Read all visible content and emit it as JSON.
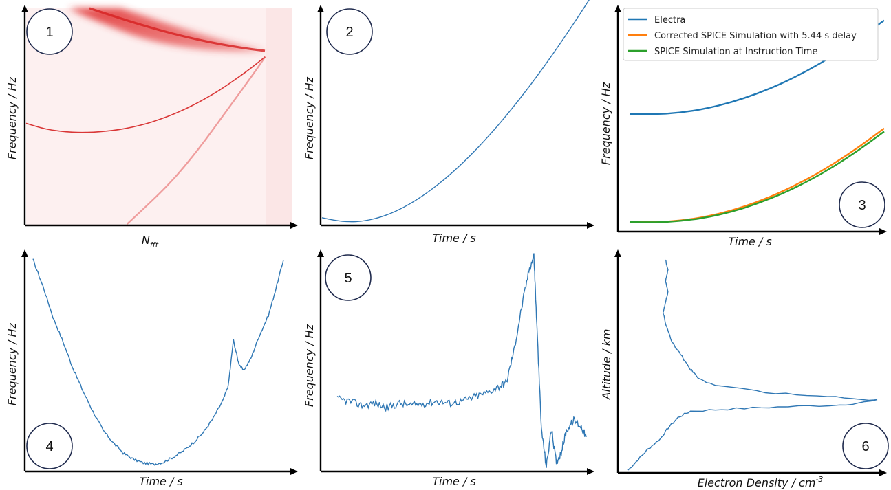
{
  "figure": {
    "background": "#ffffff",
    "line_color": "#2f77b4",
    "spectrogram_color": "#e03333"
  },
  "chart_data": [
    {
      "panel": "1",
      "type": "heatmap",
      "xlabel_main": "N",
      "xlabel_sub": "fft",
      "ylabel": "Frequency / Hz",
      "grid": false,
      "tick_labels": "none",
      "note": "spectrogram with three red frequency traces",
      "traces": [
        {
          "role": "main",
          "x": [
            0.0,
            0.05,
            0.1,
            0.15,
            0.2,
            0.25,
            0.3,
            0.35,
            0.4,
            0.45,
            0.5,
            0.55,
            0.6,
            0.65,
            0.7,
            0.75,
            0.8,
            0.85,
            0.9
          ],
          "y": [
            0.47,
            0.45,
            0.437,
            0.43,
            0.427,
            0.428,
            0.433,
            0.44,
            0.452,
            0.467,
            0.487,
            0.51,
            0.537,
            0.568,
            0.603,
            0.642,
            0.685,
            0.73,
            0.78
          ]
        },
        {
          "role": "upper",
          "x": [
            0.3,
            0.4,
            0.5,
            0.6,
            0.7,
            0.8,
            0.9
          ],
          "y": [
            1.0,
            0.94,
            0.88,
            0.84,
            0.81,
            0.79,
            0.78
          ]
        },
        {
          "role": "lower",
          "x": [
            0.38,
            0.45,
            0.55,
            0.65,
            0.75,
            0.85,
            0.9
          ],
          "y": [
            0.0,
            0.08,
            0.2,
            0.35,
            0.52,
            0.69,
            0.78
          ]
        }
      ]
    },
    {
      "panel": "2",
      "type": "line",
      "xlabel": "Time / s",
      "ylabel": "Frequency / Hz",
      "grid": false,
      "tick_labels": "none",
      "series": [
        {
          "x": [
            0.0,
            0.05,
            0.1,
            0.15,
            0.2,
            0.25,
            0.3,
            0.35,
            0.4,
            0.45,
            0.5,
            0.55,
            0.6,
            0.65,
            0.7,
            0.75,
            0.8,
            0.85,
            0.9,
            0.95,
            1.0
          ],
          "values": [
            0.03,
            0.016,
            0.01,
            0.013,
            0.026,
            0.047,
            0.077,
            0.114,
            0.158,
            0.208,
            0.264,
            0.326,
            0.393,
            0.465,
            0.542,
            0.623,
            0.708,
            0.797,
            0.89,
            0.986,
            1.085
          ]
        }
      ]
    },
    {
      "panel": "3",
      "type": "line",
      "xlabel": "Time / s",
      "ylabel": "Frequency / Hz",
      "grid": false,
      "tick_labels": "none",
      "legend_position": "top-right",
      "series": [
        {
          "name": "Electra",
          "color": "#1f77b4",
          "x": [
            0.0,
            0.1,
            0.2,
            0.3,
            0.4,
            0.5,
            0.6,
            0.7,
            0.8,
            0.9,
            1.0
          ],
          "values": [
            0.52,
            0.518,
            0.526,
            0.545,
            0.575,
            0.615,
            0.665,
            0.725,
            0.795,
            0.875,
            0.962
          ]
        },
        {
          "name": "Corrected SPICE Simulation with 5.44 s delay",
          "color": "#ff7f0e",
          "x": [
            0.0,
            0.1,
            0.2,
            0.3,
            0.4,
            0.5,
            0.6,
            0.7,
            0.8,
            0.9,
            1.0
          ],
          "values": [
            0.01,
            0.008,
            0.016,
            0.034,
            0.063,
            0.103,
            0.153,
            0.213,
            0.283,
            0.363,
            0.452
          ]
        },
        {
          "name": "SPICE Simulation at Instruction Time",
          "color": "#2ca02c",
          "x": [
            0.0,
            0.1,
            0.2,
            0.3,
            0.4,
            0.5,
            0.6,
            0.7,
            0.8,
            0.9,
            1.0
          ],
          "values": [
            0.01,
            0.007,
            0.014,
            0.03,
            0.057,
            0.095,
            0.143,
            0.201,
            0.27,
            0.349,
            0.437
          ]
        }
      ]
    },
    {
      "panel": "4",
      "type": "line",
      "xlabel": "Time / s",
      "ylabel": "Frequency / Hz",
      "grid": false,
      "tick_labels": "none",
      "series": [
        {
          "x": [
            0.0,
            0.04,
            0.08,
            0.12,
            0.16,
            0.2,
            0.24,
            0.28,
            0.32,
            0.36,
            0.4,
            0.44,
            0.48,
            0.52,
            0.56,
            0.6,
            0.64,
            0.68,
            0.72,
            0.76,
            0.78,
            0.8,
            0.82,
            0.84,
            0.87,
            0.9,
            0.94,
            0.97,
            1.0
          ],
          "values": [
            1.0,
            0.87,
            0.72,
            0.6,
            0.47,
            0.36,
            0.26,
            0.17,
            0.11,
            0.06,
            0.03,
            0.012,
            0.005,
            0.015,
            0.04,
            0.07,
            0.11,
            0.16,
            0.23,
            0.32,
            0.39,
            0.61,
            0.5,
            0.46,
            0.52,
            0.62,
            0.73,
            0.86,
            1.0
          ]
        }
      ]
    },
    {
      "panel": "5",
      "type": "line",
      "xlabel": "Time / s",
      "ylabel": "Frequency / Hz",
      "grid": false,
      "tick_labels": "none",
      "series": [
        {
          "x": [
            0.0,
            0.05,
            0.1,
            0.15,
            0.2,
            0.25,
            0.3,
            0.35,
            0.4,
            0.45,
            0.5,
            0.55,
            0.6,
            0.65,
            0.68,
            0.71,
            0.74,
            0.77,
            0.79,
            0.8,
            0.82,
            0.84,
            0.86,
            0.88,
            0.9,
            0.92,
            0.95,
            0.98,
            1.0
          ],
          "values": [
            0.32,
            0.31,
            0.29,
            0.3,
            0.28,
            0.3,
            0.29,
            0.3,
            0.31,
            0.3,
            0.31,
            0.33,
            0.35,
            0.38,
            0.4,
            0.55,
            0.75,
            0.93,
            1.0,
            0.72,
            0.18,
            0.0,
            0.18,
            0.02,
            0.07,
            0.17,
            0.22,
            0.19,
            0.14
          ]
        }
      ]
    },
    {
      "panel": "6",
      "type": "line",
      "orientation": "horizontal",
      "xlabel_main": "Electron Density / cm",
      "xlabel_sup": "-3",
      "ylabel": "Altitude / km",
      "grid": false,
      "tick_labels": "none",
      "series": [
        {
          "density": [
            0.0,
            0.04,
            0.08,
            0.13,
            0.16,
            0.2,
            0.25,
            0.4,
            0.6,
            0.85,
            1.0,
            0.8,
            0.55,
            0.35,
            0.28,
            0.25,
            0.21,
            0.18,
            0.16,
            0.15,
            0.14,
            0.15,
            0.16,
            0.15,
            0.16,
            0.15
          ],
          "altitude": [
            0.0,
            0.05,
            0.1,
            0.15,
            0.2,
            0.25,
            0.28,
            0.29,
            0.3,
            0.31,
            0.33,
            0.35,
            0.37,
            0.4,
            0.44,
            0.48,
            0.55,
            0.6,
            0.66,
            0.7,
            0.75,
            0.8,
            0.85,
            0.9,
            0.95,
            1.0
          ]
        }
      ]
    }
  ],
  "badges": [
    "1",
    "2",
    "3",
    "4",
    "5",
    "6"
  ],
  "labels": {
    "p1_x_main": "N",
    "p1_x_sub": "fft",
    "p1_y": "Frequency / Hz",
    "p2_x": "Time / s",
    "p2_y": "Frequency / Hz",
    "p3_x": "Time / s",
    "p3_y": "Frequency / Hz",
    "p4_x": "Time / s",
    "p4_y": "Frequency / Hz",
    "p5_x": "Time / s",
    "p5_y": "Frequency / Hz",
    "p6_x_main": "Electron Density / cm",
    "p6_x_sup": "-3",
    "p6_y": "Altitude / km"
  },
  "legend": {
    "items": [
      {
        "label": "Electra",
        "color": "#1f77b4"
      },
      {
        "label": "Corrected SPICE Simulation with 5.44 s delay",
        "color": "#ff7f0e"
      },
      {
        "label": "SPICE Simulation at Instruction Time",
        "color": "#2ca02c"
      }
    ]
  }
}
